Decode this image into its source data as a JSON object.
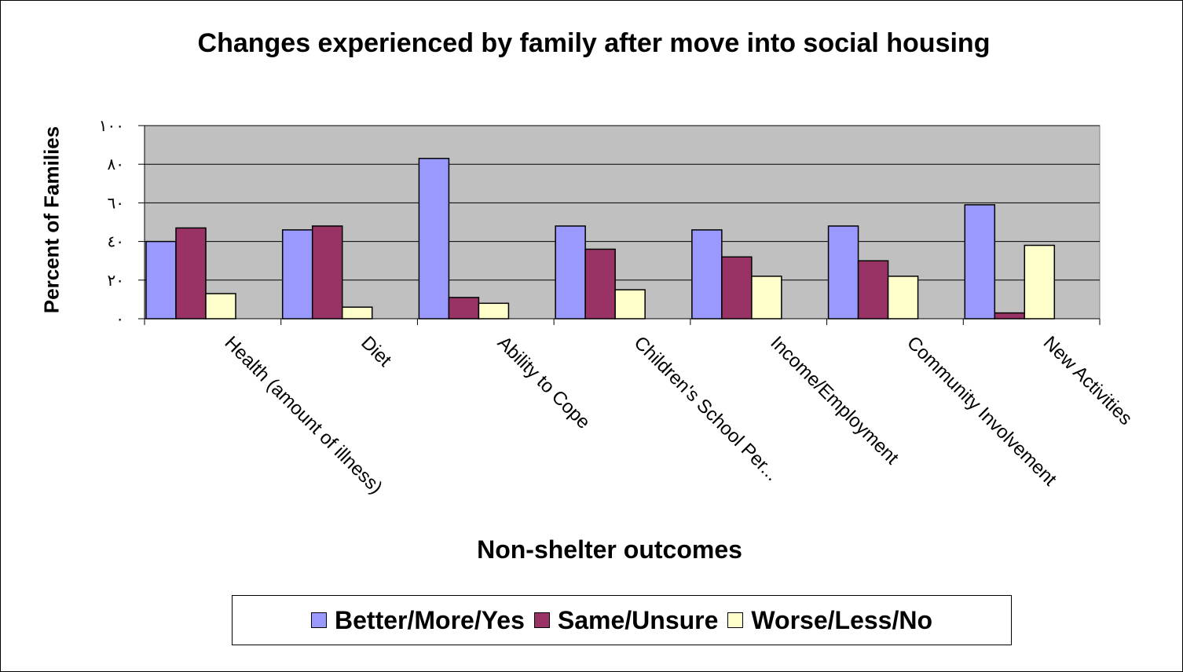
{
  "chart_data": {
    "type": "bar",
    "title": "Changes experienced by family after move into social housing",
    "xlabel": "Non-shelter outcomes",
    "ylabel": "Percent of Families",
    "ylim": [
      0,
      100
    ],
    "yticks": [
      0,
      20,
      40,
      60,
      80,
      100
    ],
    "ytick_labels": [
      "٠",
      "٢٠",
      "٤٠",
      "٦٠",
      "٨٠",
      "١٠٠"
    ],
    "grid": true,
    "plot_background": "#c0c0c0",
    "legend_position": "bottom",
    "categories": [
      "Health (amount of illness)",
      "Diet",
      "Ability to Cope",
      "Children's School Per...",
      "Income/Employment",
      "Community Involvement",
      "New Activities"
    ],
    "series": [
      {
        "name": "Better/More/Yes",
        "color": "#9999ff",
        "values": [
          40,
          46,
          83,
          48,
          46,
          48,
          59
        ]
      },
      {
        "name": "Same/Unsure",
        "color": "#993366",
        "values": [
          47,
          48,
          11,
          36,
          32,
          30,
          3
        ]
      },
      {
        "name": "Worse/Less/No",
        "color": "#ffffcc",
        "values": [
          13,
          6,
          8,
          15,
          22,
          22,
          38
        ]
      }
    ]
  }
}
